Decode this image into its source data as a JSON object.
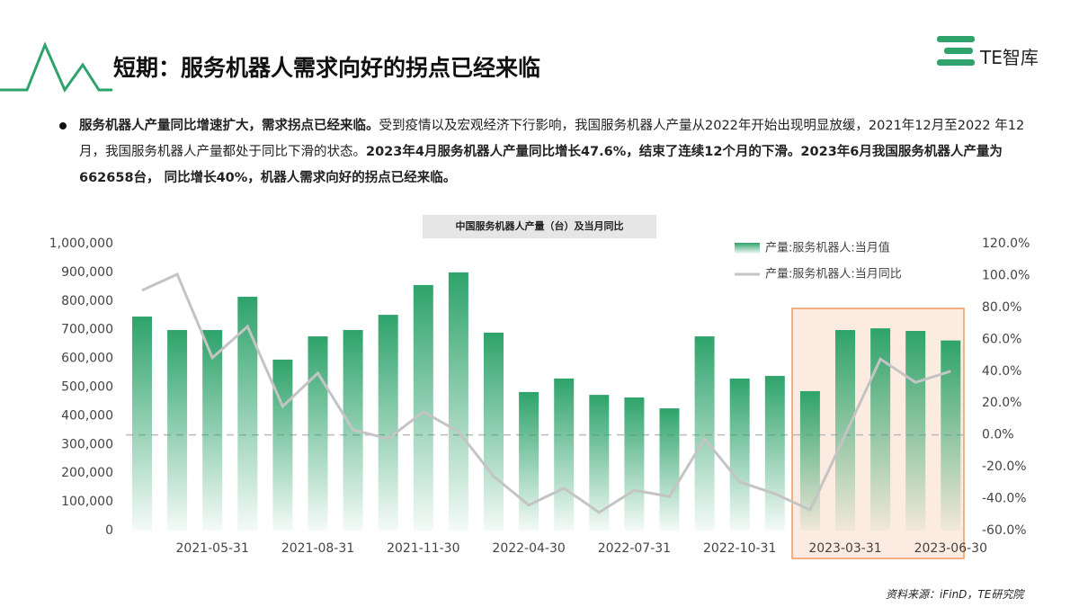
{
  "title": "短期：服务机器人需求向好的拐点已经来临",
  "logo": "TE智库",
  "bullet": [
    {
      "text": "服务机器人产量同比增速扩大，需求拐点已经来临。",
      "bold": true
    },
    {
      "text": "受到疫情以及宏观经济下行影响，我国服务机器人产量从2022年开始出现明显放缓，2021年12月至2022 年12月，我国服务机器人产量都处于同比下滑的状态。",
      "bold": false
    },
    {
      "text": "2023年4月服务机器人产量同比增长47.6%，结束了连续12个月的下滑。2023年6月我国服务机器人产量为662658台， 同比增长40%，机器人需求向好的拐点已经来临。",
      "bold": true
    }
  ],
  "source": "资料来源：iFinD，TE研究院",
  "chart_data": {
    "type": "bar-line",
    "title": "中国服务机器人产量（台）及当月同比",
    "categories": [
      null,
      null,
      "2021-05-31",
      null,
      null,
      "2021-08-31",
      null,
      null,
      "2021-11-30",
      null,
      null,
      "2022-04-30",
      null,
      null,
      "2022-07-31",
      null,
      null,
      "2022-10-31",
      null,
      null,
      "2023-03-31",
      null,
      null,
      "2023-06-30"
    ],
    "series": [
      {
        "name": "产量:服务机器人:当月值",
        "color": "#2ea36b",
        "type": "bar",
        "values": [
          746000,
          699000,
          699000,
          815000,
          596000,
          677000,
          699000,
          752000,
          856000,
          900000,
          690000,
          483000,
          530000,
          473000,
          464000,
          426000,
          677000,
          530000,
          539000,
          486000,
          699000,
          705000,
          696000,
          662658
        ]
      },
      {
        "name": "产量:服务机器人:当月同比",
        "color": "#c4c4c4",
        "type": "line",
        "axis": "y2",
        "values": [
          90.7,
          100.8,
          48.4,
          68,
          17.9,
          38.8,
          3.2,
          -2.4,
          14.5,
          2.1,
          -26,
          -44,
          -33.4,
          -48.6,
          -34.7,
          -38.6,
          -2.4,
          -29.5,
          -36.9,
          -47,
          0,
          47.6,
          33,
          40
        ]
      }
    ],
    "ylim": [
      0,
      1000000
    ],
    "yticks": [
      0,
      {
        "value": 100000,
        "label": "100,000"
      },
      {
        "value": 200000,
        "label": "200,000"
      },
      {
        "value": 300000,
        "label": "300,000"
      },
      {
        "value": 400000,
        "label": "400,000"
      },
      {
        "value": 500000,
        "label": "500,000"
      },
      {
        "value": 600000,
        "label": "600,000"
      },
      {
        "value": 700000,
        "label": "700,000"
      },
      {
        "value": 800000,
        "label": "800,000"
      },
      {
        "value": 900000,
        "label": "900,000"
      },
      {
        "value": 1000000,
        "label": "1,000,000"
      }
    ],
    "y2lim": [
      -60,
      120
    ],
    "y2ticks": [
      {
        "value": -60,
        "label": "-60.0%"
      },
      {
        "value": -40,
        "label": "-40.0%"
      },
      {
        "value": -20,
        "label": "-20.0%"
      },
      {
        "value": 0,
        "label": "0.0%"
      },
      {
        "value": 20,
        "label": "20.0%"
      },
      {
        "value": 40,
        "label": "40.0%"
      },
      {
        "value": 60,
        "label": "60.0%"
      },
      {
        "value": 80,
        "label": "80.0%"
      },
      {
        "value": 100,
        "label": "100.0%"
      },
      {
        "value": 120,
        "label": "120.0%"
      }
    ],
    "legend": "top-right"
  }
}
